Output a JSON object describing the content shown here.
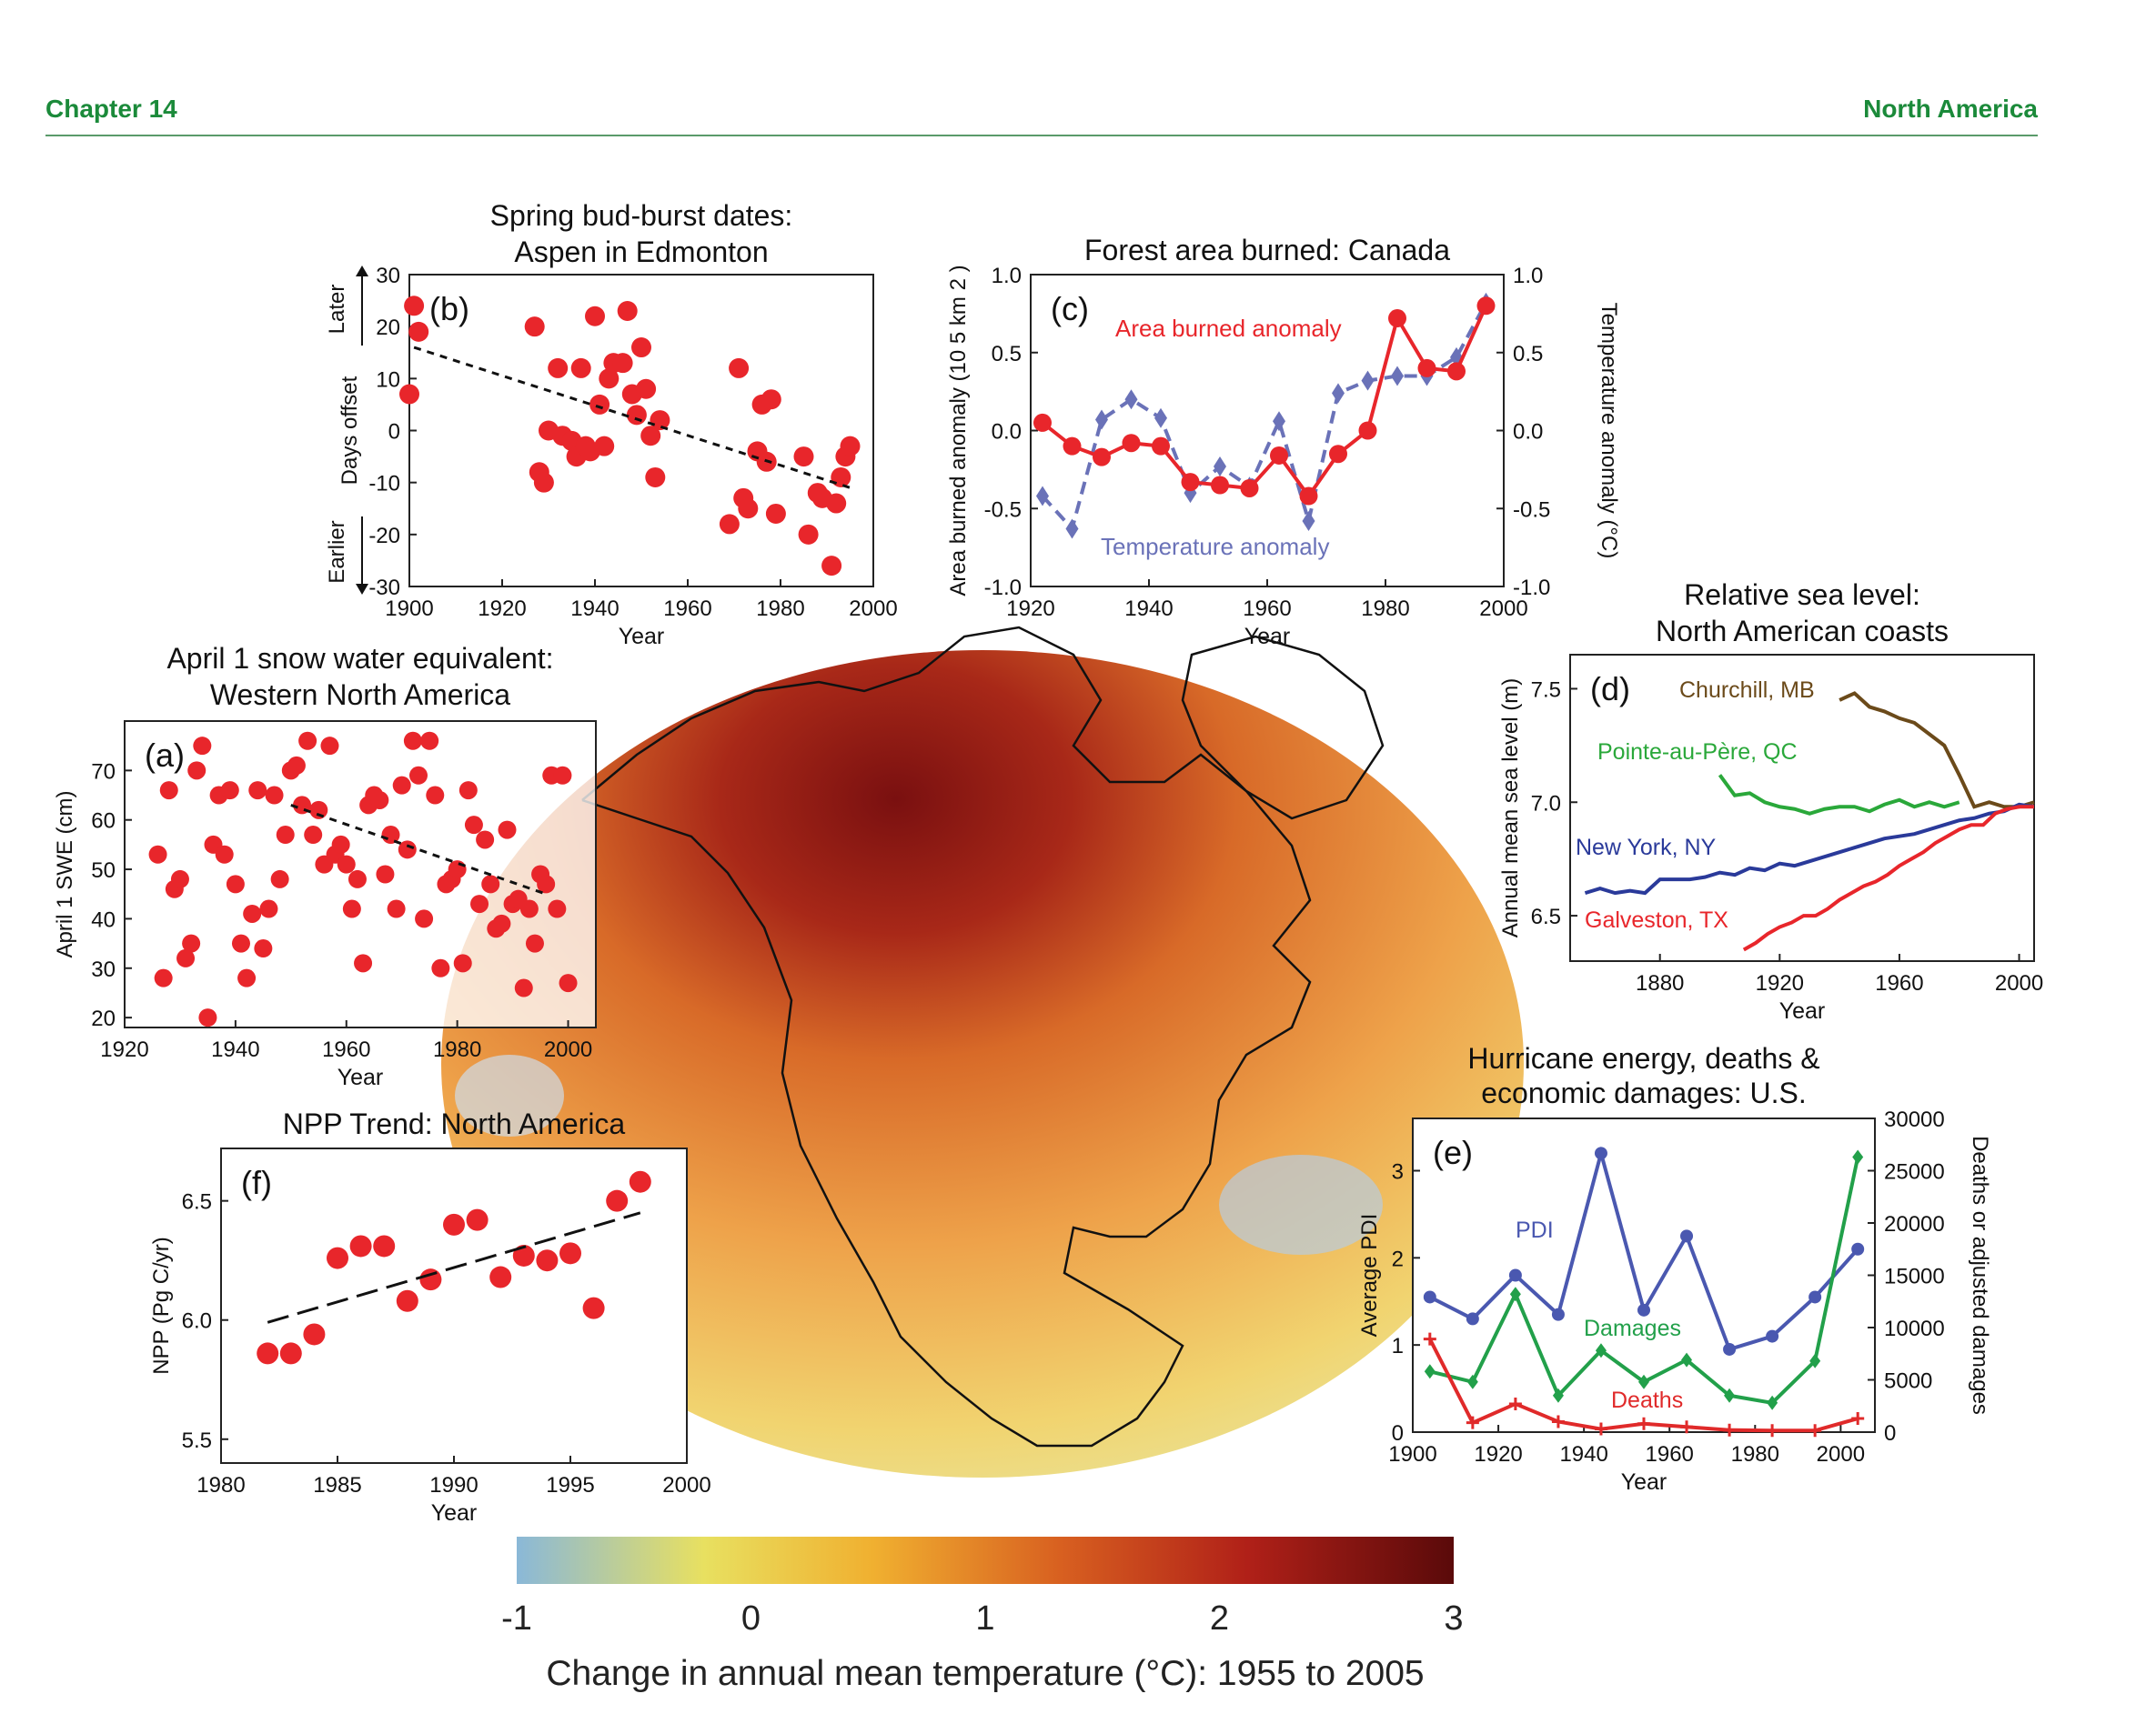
{
  "header": {
    "chapter": "Chapter 14",
    "section": "North America"
  },
  "colorbar": {
    "ticks": [
      "-1",
      "0",
      "1",
      "2",
      "3"
    ],
    "title": "Change in annual mean temperature (°C): 1955 to 2005",
    "colors": [
      "#8ab8d8",
      "#e8e060",
      "#f0b030",
      "#d86020",
      "#b02018",
      "#5a0a0a"
    ]
  },
  "colors": {
    "red": "#e8262b",
    "blue_dashed": "#6a72b8",
    "brown": "#6b4a1a",
    "green": "#2aa83a",
    "navy": "#2a3a9a",
    "pdi": "#4a58b0",
    "damages": "#22a04a",
    "deaths": "#e02a2a"
  },
  "chart_data": [
    {
      "id": "b",
      "type": "scatter",
      "panel_label": "(b)",
      "title": "Spring bud-burst dates:",
      "subtitle": "Aspen in Edmonton",
      "xlabel": "Year",
      "ylabel": "Days offset",
      "arrow_labels": {
        "top": "Later",
        "bottom": "Earlier"
      },
      "xlim": [
        1900,
        2000
      ],
      "ylim": [
        -30,
        30
      ],
      "xticks": [
        "1900",
        "1920",
        "1940",
        "1960",
        "1980",
        "2000"
      ],
      "yticks": [
        "30",
        "20",
        "10",
        "0",
        "-10",
        "-20",
        "-30"
      ],
      "points": [
        [
          1901,
          24
        ],
        [
          1902,
          19
        ],
        [
          1900,
          7
        ],
        [
          1927,
          20
        ],
        [
          1928,
          -8
        ],
        [
          1929,
          -10
        ],
        [
          1930,
          0
        ],
        [
          1932,
          12
        ],
        [
          1933,
          -1
        ],
        [
          1935,
          -2
        ],
        [
          1936,
          -5
        ],
        [
          1937,
          12
        ],
        [
          1938,
          -3
        ],
        [
          1939,
          -4
        ],
        [
          1940,
          22
        ],
        [
          1941,
          5
        ],
        [
          1942,
          -3
        ],
        [
          1943,
          10
        ],
        [
          1944,
          13
        ],
        [
          1946,
          13
        ],
        [
          1947,
          23
        ],
        [
          1948,
          7
        ],
        [
          1949,
          3
        ],
        [
          1950,
          16
        ],
        [
          1951,
          8
        ],
        [
          1952,
          -1
        ],
        [
          1953,
          -9
        ],
        [
          1954,
          2
        ],
        [
          1969,
          -18
        ],
        [
          1971,
          12
        ],
        [
          1972,
          -13
        ],
        [
          1973,
          -15
        ],
        [
          1975,
          -4
        ],
        [
          1976,
          5
        ],
        [
          1977,
          -6
        ],
        [
          1978,
          6
        ],
        [
          1979,
          -16
        ],
        [
          1985,
          -5
        ],
        [
          1986,
          -20
        ],
        [
          1988,
          -12
        ],
        [
          1989,
          -13
        ],
        [
          1991,
          -26
        ],
        [
          1992,
          -14
        ],
        [
          1993,
          -9
        ],
        [
          1994,
          -5
        ],
        [
          1995,
          -3
        ]
      ],
      "trend": [
        [
          1901,
          16
        ],
        [
          1995,
          -11
        ]
      ]
    },
    {
      "id": "c",
      "type": "line",
      "panel_label": "(c)",
      "title": "Forest area burned: Canada",
      "xlabel": "Year",
      "ylabel": "Area burned anomaly  (10 5 km 2 )",
      "y2label": "Temperature anomaly (°C)",
      "xlim": [
        1920,
        2000
      ],
      "ylim": [
        -1,
        1
      ],
      "xticks": [
        "1920",
        "1940",
        "1960",
        "1980",
        "2000"
      ],
      "yticks": [
        "1.0",
        "0.5",
        "0.0",
        "-0.5",
        "-1.0"
      ],
      "series": [
        {
          "name": "Area burned anomaly",
          "style": "solid-circle",
          "x": [
            1922,
            1927,
            1932,
            1937,
            1942,
            1947,
            1952,
            1957,
            1962,
            1967,
            1972,
            1977,
            1982,
            1987,
            1992,
            1997
          ],
          "y": [
            0.05,
            -0.1,
            -0.17,
            -0.08,
            -0.1,
            -0.33,
            -0.35,
            -0.37,
            -0.16,
            -0.42,
            -0.15,
            0.0,
            0.72,
            0.4,
            0.38,
            0.8
          ]
        },
        {
          "name": "Temperature anomaly",
          "style": "dashed-diamond",
          "x": [
            1922,
            1927,
            1932,
            1937,
            1942,
            1947,
            1952,
            1957,
            1962,
            1967,
            1972,
            1977,
            1982,
            1987,
            1992,
            1997
          ],
          "y": [
            -0.42,
            -0.63,
            0.07,
            0.2,
            0.08,
            -0.4,
            -0.23,
            -0.36,
            0.06,
            -0.58,
            0.24,
            0.32,
            0.35,
            0.35,
            0.47,
            0.82
          ]
        }
      ]
    },
    {
      "id": "a",
      "type": "scatter",
      "panel_label": "(a)",
      "title": "April 1 snow water equivalent:",
      "subtitle": "Western North America",
      "xlabel": "Year",
      "ylabel": "April 1 SWE (cm)",
      "xlim": [
        1920,
        2005
      ],
      "ylim": [
        18,
        80
      ],
      "xticks": [
        "1920",
        "1940",
        "1960",
        "1980",
        "2000"
      ],
      "yticks": [
        "70",
        "60",
        "50",
        "40",
        "30",
        "20"
      ],
      "points": [
        [
          1926,
          53
        ],
        [
          1927,
          28
        ],
        [
          1928,
          66
        ],
        [
          1929,
          46
        ],
        [
          1930,
          48
        ],
        [
          1931,
          32
        ],
        [
          1932,
          35
        ],
        [
          1933,
          70
        ],
        [
          1934,
          75
        ],
        [
          1935,
          20
        ],
        [
          1936,
          55
        ],
        [
          1937,
          65
        ],
        [
          1938,
          53
        ],
        [
          1939,
          66
        ],
        [
          1940,
          47
        ],
        [
          1941,
          35
        ],
        [
          1942,
          28
        ],
        [
          1943,
          41
        ],
        [
          1944,
          66
        ],
        [
          1945,
          34
        ],
        [
          1946,
          42
        ],
        [
          1947,
          65
        ],
        [
          1948,
          48
        ],
        [
          1949,
          57
        ],
        [
          1950,
          70
        ],
        [
          1951,
          71
        ],
        [
          1952,
          63
        ],
        [
          1953,
          76
        ],
        [
          1954,
          57
        ],
        [
          1955,
          62
        ],
        [
          1956,
          51
        ],
        [
          1957,
          75
        ],
        [
          1958,
          53
        ],
        [
          1959,
          55
        ],
        [
          1960,
          51
        ],
        [
          1961,
          42
        ],
        [
          1962,
          48
        ],
        [
          1963,
          31
        ],
        [
          1964,
          63
        ],
        [
          1965,
          65
        ],
        [
          1966,
          64
        ],
        [
          1967,
          49
        ],
        [
          1968,
          57
        ],
        [
          1969,
          42
        ],
        [
          1970,
          67
        ],
        [
          1971,
          54
        ],
        [
          1972,
          76
        ],
        [
          1973,
          69
        ],
        [
          1974,
          40
        ],
        [
          1975,
          76
        ],
        [
          1976,
          65
        ],
        [
          1977,
          30
        ],
        [
          1978,
          47
        ],
        [
          1979,
          48
        ],
        [
          1980,
          50
        ],
        [
          1981,
          31
        ],
        [
          1982,
          66
        ],
        [
          1983,
          59
        ],
        [
          1984,
          43
        ],
        [
          1985,
          56
        ],
        [
          1986,
          47
        ],
        [
          1987,
          38
        ],
        [
          1988,
          39
        ],
        [
          1989,
          58
        ],
        [
          1990,
          43
        ],
        [
          1991,
          44
        ],
        [
          1992,
          26
        ],
        [
          1993,
          42
        ],
        [
          1994,
          35
        ],
        [
          1995,
          49
        ],
        [
          1996,
          47
        ],
        [
          1997,
          69
        ],
        [
          1998,
          42
        ],
        [
          1999,
          69
        ],
        [
          2000,
          27
        ]
      ],
      "trend": [
        [
          1950,
          63
        ],
        [
          1996,
          45
        ]
      ]
    },
    {
      "id": "d",
      "type": "line",
      "panel_label": "(d)",
      "title": "Relative sea level:",
      "subtitle": "North American coasts",
      "xlabel": "Year",
      "ylabel": "Annual mean sea level (m)",
      "xlim": [
        1850,
        2005
      ],
      "ylim": [
        6.3,
        7.65
      ],
      "xticks": [
        "1880",
        "1920",
        "1960",
        "2000"
      ],
      "yticks": [
        "7.5",
        "7.0",
        "6.5"
      ],
      "series": [
        {
          "name": "Churchill, MB",
          "x": [
            1940,
            1945,
            1950,
            1955,
            1960,
            1965,
            1970,
            1975,
            1980,
            1985,
            1990,
            1995,
            2000,
            2005
          ],
          "y": [
            7.45,
            7.48,
            7.42,
            7.4,
            7.37,
            7.35,
            7.3,
            7.25,
            7.12,
            6.98,
            7.0,
            6.98,
            6.98,
            7.0
          ]
        },
        {
          "name": "Pointe-au-Père, QC",
          "x": [
            1900,
            1905,
            1910,
            1915,
            1920,
            1925,
            1930,
            1935,
            1940,
            1945,
            1950,
            1955,
            1960,
            1965,
            1970,
            1975,
            1980
          ],
          "y": [
            7.12,
            7.03,
            7.04,
            7.0,
            6.98,
            6.97,
            6.95,
            6.97,
            6.98,
            6.98,
            6.96,
            6.99,
            7.01,
            6.98,
            7.0,
            6.98,
            7.0
          ]
        },
        {
          "name": "New York, NY",
          "x": [
            1855,
            1860,
            1865,
            1870,
            1875,
            1880,
            1885,
            1890,
            1895,
            1900,
            1905,
            1910,
            1915,
            1920,
            1925,
            1930,
            1935,
            1940,
            1945,
            1950,
            1955,
            1960,
            1965,
            1970,
            1975,
            1980,
            1985,
            1990,
            1995,
            2000,
            2005
          ],
          "y": [
            6.6,
            6.62,
            6.6,
            6.61,
            6.6,
            6.66,
            6.66,
            6.66,
            6.67,
            6.69,
            6.68,
            6.71,
            6.7,
            6.73,
            6.72,
            6.74,
            6.76,
            6.78,
            6.8,
            6.82,
            6.84,
            6.85,
            6.86,
            6.88,
            6.9,
            6.92,
            6.93,
            6.95,
            6.96,
            6.99,
            6.98
          ]
        },
        {
          "name": "Galveston, TX",
          "x": [
            1908,
            1912,
            1916,
            1920,
            1924,
            1928,
            1932,
            1936,
            1940,
            1944,
            1948,
            1952,
            1956,
            1960,
            1964,
            1968,
            1972,
            1976,
            1980,
            1984,
            1988,
            1992,
            1996,
            2000,
            2005
          ],
          "y": [
            6.35,
            6.38,
            6.42,
            6.45,
            6.47,
            6.5,
            6.5,
            6.53,
            6.57,
            6.6,
            6.63,
            6.65,
            6.68,
            6.72,
            6.75,
            6.78,
            6.82,
            6.85,
            6.88,
            6.9,
            6.9,
            6.95,
            6.97,
            6.98,
            6.98
          ]
        }
      ]
    },
    {
      "id": "f",
      "type": "scatter",
      "panel_label": "(f)",
      "title": "NPP Trend: North America",
      "xlabel": "Year",
      "ylabel": "NPP  (Pg C/yr)",
      "xlim": [
        1980,
        2000
      ],
      "ylim": [
        5.4,
        6.72
      ],
      "xticks": [
        "1980",
        "1985",
        "1990",
        "1995",
        "2000"
      ],
      "yticks": [
        "6.5",
        "6.0",
        "5.5"
      ],
      "points": [
        [
          1982,
          5.86
        ],
        [
          1983,
          5.86
        ],
        [
          1984,
          5.94
        ],
        [
          1985,
          6.26
        ],
        [
          1986,
          6.31
        ],
        [
          1987,
          6.31
        ],
        [
          1988,
          6.08
        ],
        [
          1989,
          6.17
        ],
        [
          1990,
          6.4
        ],
        [
          1991,
          6.42
        ],
        [
          1992,
          6.18
        ],
        [
          1993,
          6.27
        ],
        [
          1994,
          6.25
        ],
        [
          1995,
          6.28
        ],
        [
          1996,
          6.05
        ],
        [
          1997,
          6.5
        ],
        [
          1998,
          6.58
        ]
      ],
      "trend": [
        [
          1982,
          5.99
        ],
        [
          1998,
          6.45
        ]
      ]
    },
    {
      "id": "e",
      "type": "line",
      "panel_label": "(e)",
      "title": "Hurricane energy, deaths &",
      "subtitle": "economic damages: U.S.",
      "xlabel": "Year",
      "ylabel": "Average PDI",
      "y2label": "Deaths or adjusted damages",
      "xlim": [
        1900,
        2008
      ],
      "ylim": [
        0,
        3.6
      ],
      "y2lim": [
        0,
        30000
      ],
      "xticks": [
        "1900",
        "1920",
        "1940",
        "1960",
        "1980",
        "2000"
      ],
      "yticks": [
        "3",
        "2",
        "1",
        "0"
      ],
      "y2ticks": [
        "30000",
        "25000",
        "20000",
        "15000",
        "10000",
        "5000",
        "0"
      ],
      "series": [
        {
          "name": "PDI",
          "axis": "left",
          "x": [
            1904,
            1914,
            1924,
            1934,
            1944,
            1954,
            1964,
            1974,
            1984,
            1994,
            2004
          ],
          "y": [
            1.55,
            1.3,
            1.8,
            1.35,
            3.2,
            1.4,
            2.25,
            0.95,
            1.1,
            1.55,
            2.1
          ]
        },
        {
          "name": "Damages",
          "axis": "right",
          "x": [
            1904,
            1914,
            1924,
            1934,
            1944,
            1954,
            1964,
            1974,
            1984,
            1994,
            2004
          ],
          "y": [
            5800,
            4800,
            13200,
            3500,
            7800,
            4800,
            6900,
            3500,
            2800,
            6800,
            26300
          ]
        },
        {
          "name": "Deaths",
          "axis": "right",
          "x": [
            1904,
            1914,
            1924,
            1934,
            1944,
            1954,
            1964,
            1974,
            1984,
            1994,
            2004
          ],
          "y": [
            8900,
            900,
            2700,
            1000,
            300,
            800,
            500,
            200,
            150,
            150,
            1300
          ]
        }
      ]
    }
  ]
}
